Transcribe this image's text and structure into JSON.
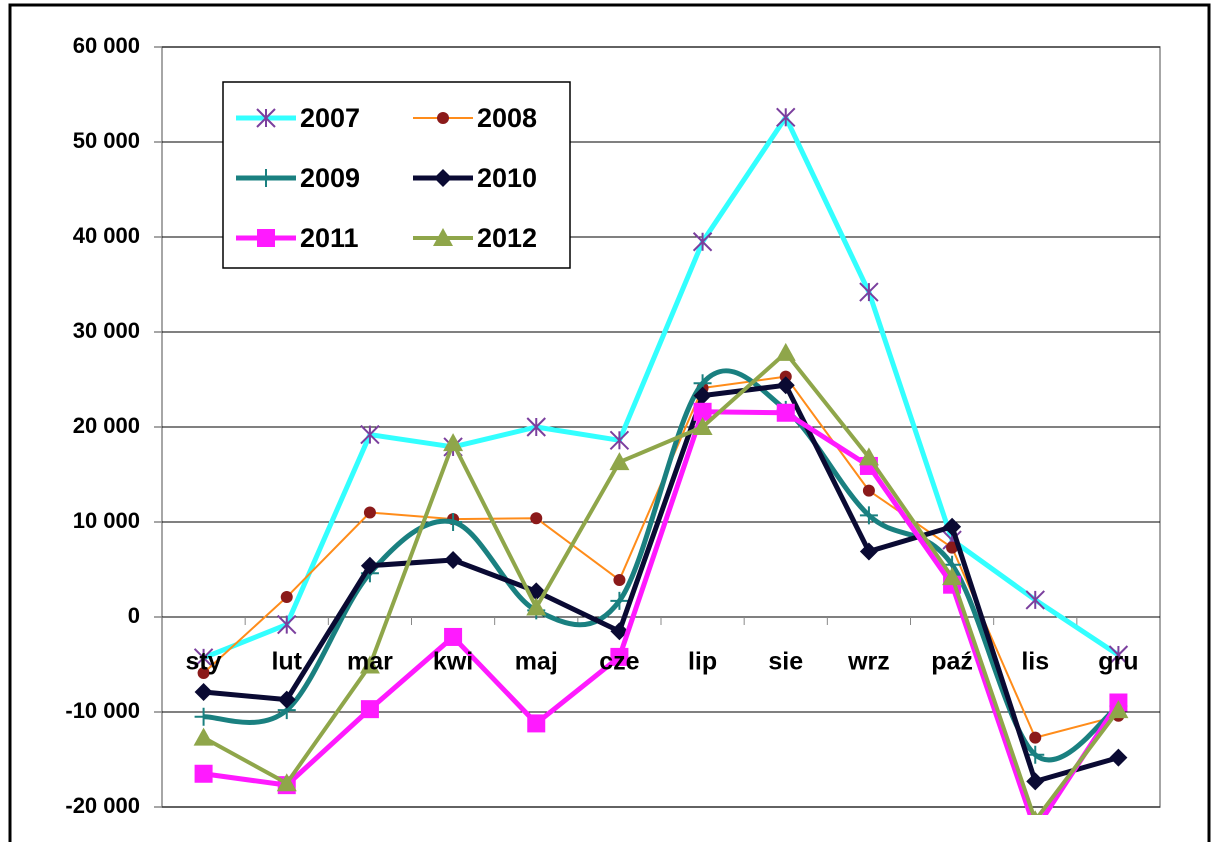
{
  "chart_data": {
    "type": "line",
    "categories": [
      "sty",
      "lut",
      "mar",
      "kwi",
      "maj",
      "cze",
      "lip",
      "sie",
      "wrz",
      "paź",
      "lis",
      "gru"
    ],
    "ylim": [
      -20000,
      60000
    ],
    "yticks": [
      {
        "value": -20000,
        "label": "-20 000"
      },
      {
        "value": -10000,
        "label": "-10 000"
      },
      0,
      {
        "value": 10000,
        "label": "10 000"
      },
      {
        "value": 20000,
        "label": "20 000"
      },
      {
        "value": 30000,
        "label": "30 000"
      },
      {
        "value": 40000,
        "label": "40 000"
      },
      {
        "value": 50000,
        "label": "50 000"
      },
      {
        "value": 60000,
        "label": "60 000"
      }
    ],
    "grid": true,
    "legend": "upper left",
    "series": [
      {
        "name": "2007",
        "color": "#33ffff",
        "marker": "asterisk",
        "marker_color": "#7b3f9e",
        "width": 5,
        "values": [
          -4300,
          -800,
          19200,
          17900,
          20000,
          18600,
          39500,
          52600,
          34200,
          8100,
          1800,
          -4000
        ]
      },
      {
        "name": "2008",
        "color": "#ff8c1a",
        "marker": "circle",
        "marker_color": "#8b1a1a",
        "width": 2,
        "values": [
          -5900,
          2100,
          11000,
          10300,
          10400,
          3900,
          24100,
          25300,
          13300,
          7300,
          -12700,
          -10400
        ]
      },
      {
        "name": "2009",
        "color": "#1a8080",
        "marker": "plus",
        "marker_color": "#1a8080",
        "width": 5,
        "smooth": true,
        "values": [
          -10500,
          -9800,
          4600,
          10000,
          700,
          1700,
          24600,
          21800,
          10700,
          5500,
          -14500,
          -9400
        ]
      },
      {
        "name": "2010",
        "color": "#0a0a33",
        "marker": "diamond",
        "marker_color": "#0a0a33",
        "width": 5,
        "values": [
          -7900,
          -8700,
          5400,
          6000,
          2700,
          -1500,
          23300,
          24400,
          6900,
          9500,
          -17300,
          -14800
        ]
      },
      {
        "name": "2011",
        "color": "#ff1aff",
        "marker": "square",
        "marker_color": "#ff1aff",
        "width": 5,
        "values": [
          -16500,
          -17700,
          -9700,
          -2100,
          -11200,
          -4200,
          21600,
          21500,
          15900,
          3400,
          -22400,
          -9000
        ]
      },
      {
        "name": "2012",
        "color": "#8fa64a",
        "marker": "triangle",
        "marker_color": "#8fa64a",
        "width": 4,
        "values": [
          -12700,
          -17500,
          -5100,
          18300,
          1000,
          16300,
          20000,
          27800,
          16800,
          4200,
          -21400,
          -9800
        ]
      }
    ]
  }
}
